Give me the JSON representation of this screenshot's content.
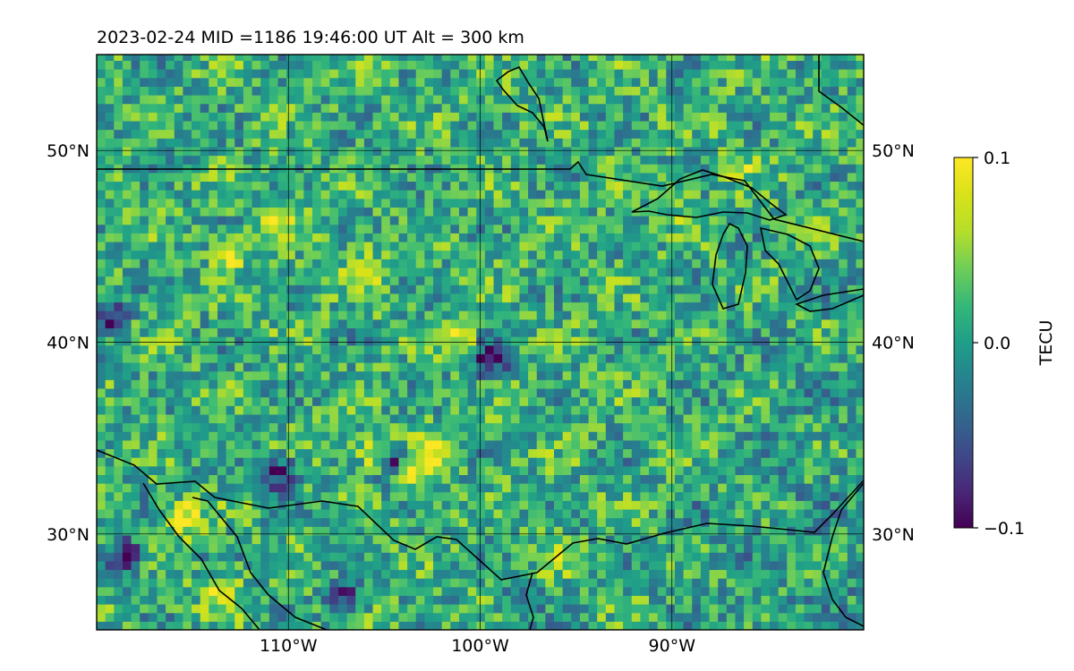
{
  "title": "2023-02-24  MID =1186    19:46:00  UT  Alt = 300 km",
  "map": {
    "lat_range": [
      25,
      55
    ],
    "lon_range": [
      -120,
      -80
    ],
    "lat_ticks": [
      {
        "value": 30,
        "label": "30°N"
      },
      {
        "value": 40,
        "label": "40°N"
      },
      {
        "value": 50,
        "label": "50°N"
      }
    ],
    "lon_ticks": [
      {
        "value": -110,
        "label": "110°W"
      },
      {
        "value": -100,
        "label": "100°W"
      },
      {
        "value": -90,
        "label": "90°W"
      }
    ],
    "gridlines": true,
    "features": [
      "coastlines",
      "country-borders",
      "great-lakes"
    ]
  },
  "colorbar": {
    "label": "TECU",
    "colormap": "viridis",
    "min": -0.1,
    "max": 0.1,
    "ticks": [
      {
        "value": 0.1,
        "label": "0.1"
      },
      {
        "value": 0.0,
        "label": "0.0"
      },
      {
        "value": -0.1,
        "label": "−0.1"
      }
    ],
    "placement": "right"
  },
  "anomalies": [
    {
      "lon": -113.5,
      "lat": 27.0,
      "value": 0.1,
      "note": "strong positive"
    },
    {
      "lon": -115.5,
      "lat": 30.8,
      "value": 0.1
    },
    {
      "lon": -102.5,
      "lat": 34.5,
      "value": 0.1
    },
    {
      "lon": -105.5,
      "lat": 34.3,
      "value": 0.1
    },
    {
      "lon": -103.5,
      "lat": 33.2,
      "value": 0.09
    },
    {
      "lon": -106.0,
      "lat": 43.8,
      "value": 0.1
    },
    {
      "lon": -110.5,
      "lat": 46.4,
      "value": 0.09
    },
    {
      "lon": -113.0,
      "lat": 44.8,
      "value": 0.09
    },
    {
      "lon": -101.0,
      "lat": 40.0,
      "value": 0.09
    },
    {
      "lon": -96.0,
      "lat": 29.0,
      "value": 0.06
    },
    {
      "lon": -104.5,
      "lat": 33.8,
      "value": -0.1
    },
    {
      "lon": -99.5,
      "lat": 39.2,
      "value": -0.1
    },
    {
      "lon": -110.5,
      "lat": 33.2,
      "value": -0.09
    },
    {
      "lon": -118.5,
      "lat": 28.8,
      "value": -0.09
    },
    {
      "lon": -119.5,
      "lat": 41.5,
      "value": -0.08
    },
    {
      "lon": -98.0,
      "lat": 26.5,
      "value": -0.06
    },
    {
      "lon": -107.0,
      "lat": 26.8,
      "value": -0.06
    },
    {
      "lon": -89.0,
      "lat": 46.7,
      "value": 0.05
    },
    {
      "lon": -86.5,
      "lat": 49.3,
      "value": 0.05
    }
  ]
}
